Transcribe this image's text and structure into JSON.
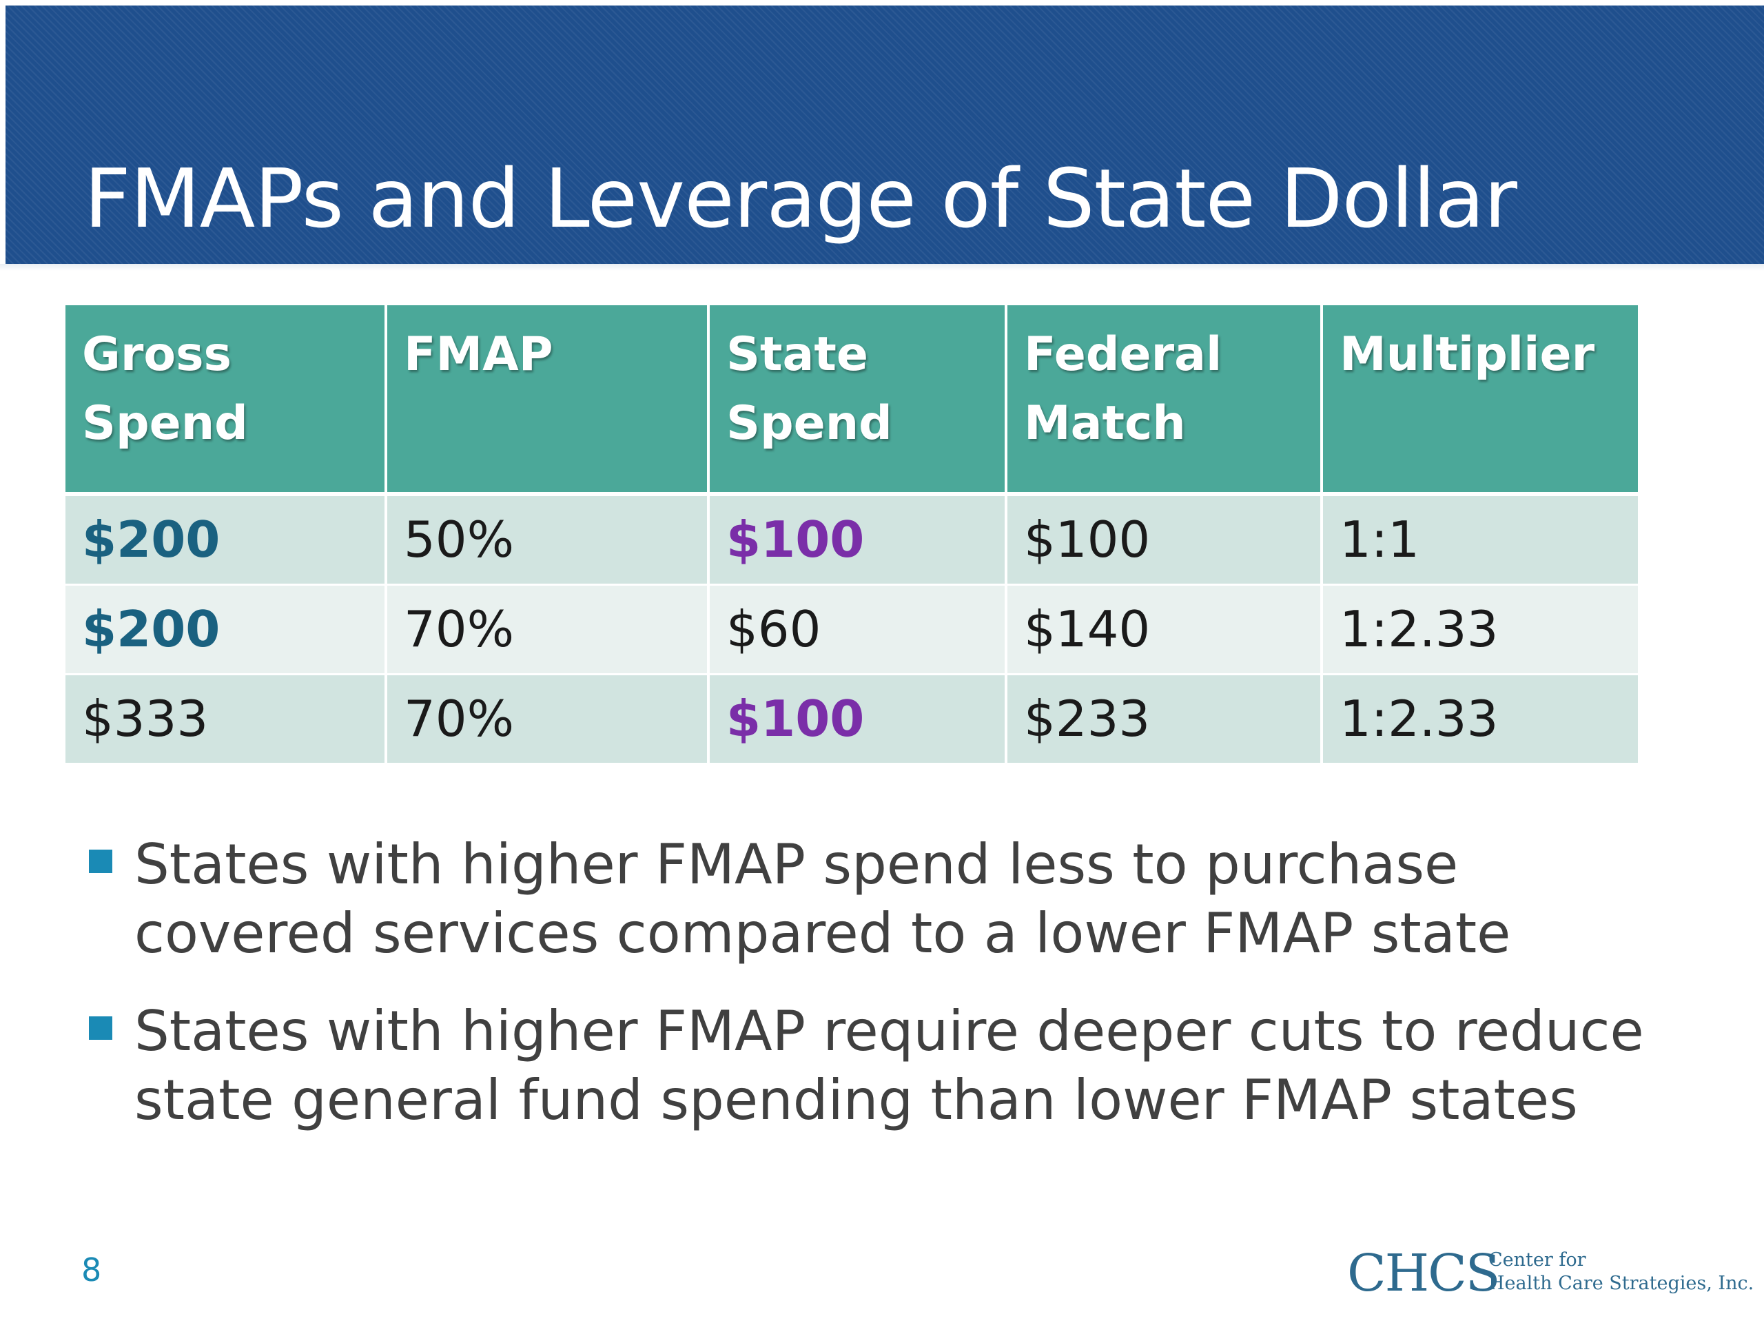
{
  "slide": {
    "title": "FMAPs and Leverage of State Dollar",
    "page_number": "8"
  },
  "table": {
    "headers": [
      {
        "line1": "Gross",
        "line2": "Spend"
      },
      {
        "line1": "FMAP",
        "line2": ""
      },
      {
        "line1": "State",
        "line2": "Spend"
      },
      {
        "line1": "Federal",
        "line2": "Match"
      },
      {
        "line1": "Multiplier",
        "line2": ""
      }
    ],
    "rows": [
      [
        "$200",
        "50%",
        "$100",
        "$100",
        "1:1"
      ],
      [
        "$200",
        "70%",
        "$60",
        "$140",
        "1:2.33"
      ],
      [
        "$333",
        "70%",
        "$100",
        "$233",
        "1:2.33"
      ]
    ]
  },
  "bullets": [
    {
      "line1": "States with higher FMAP spend less to purchase",
      "line2": "covered services compared to a lower FMAP state"
    },
    {
      "line1": "States with higher FMAP require deeper cuts to reduce",
      "line2": "state general fund spending than lower FMAP states"
    }
  ],
  "logo": {
    "mark": "CHCS",
    "line1": "Center for",
    "line2": "Health Care Strategies, Inc."
  },
  "colors": {
    "header_band": "#1f4f8d",
    "table_header": "#4ba899",
    "row_dark": "#d1e4e0",
    "row_light": "#e9f1ef",
    "highlight_teal": "#1a6180",
    "highlight_purple": "#7a2ea8",
    "bullet_marker": "#1a8ab5",
    "logo": "#2e6a8e"
  }
}
